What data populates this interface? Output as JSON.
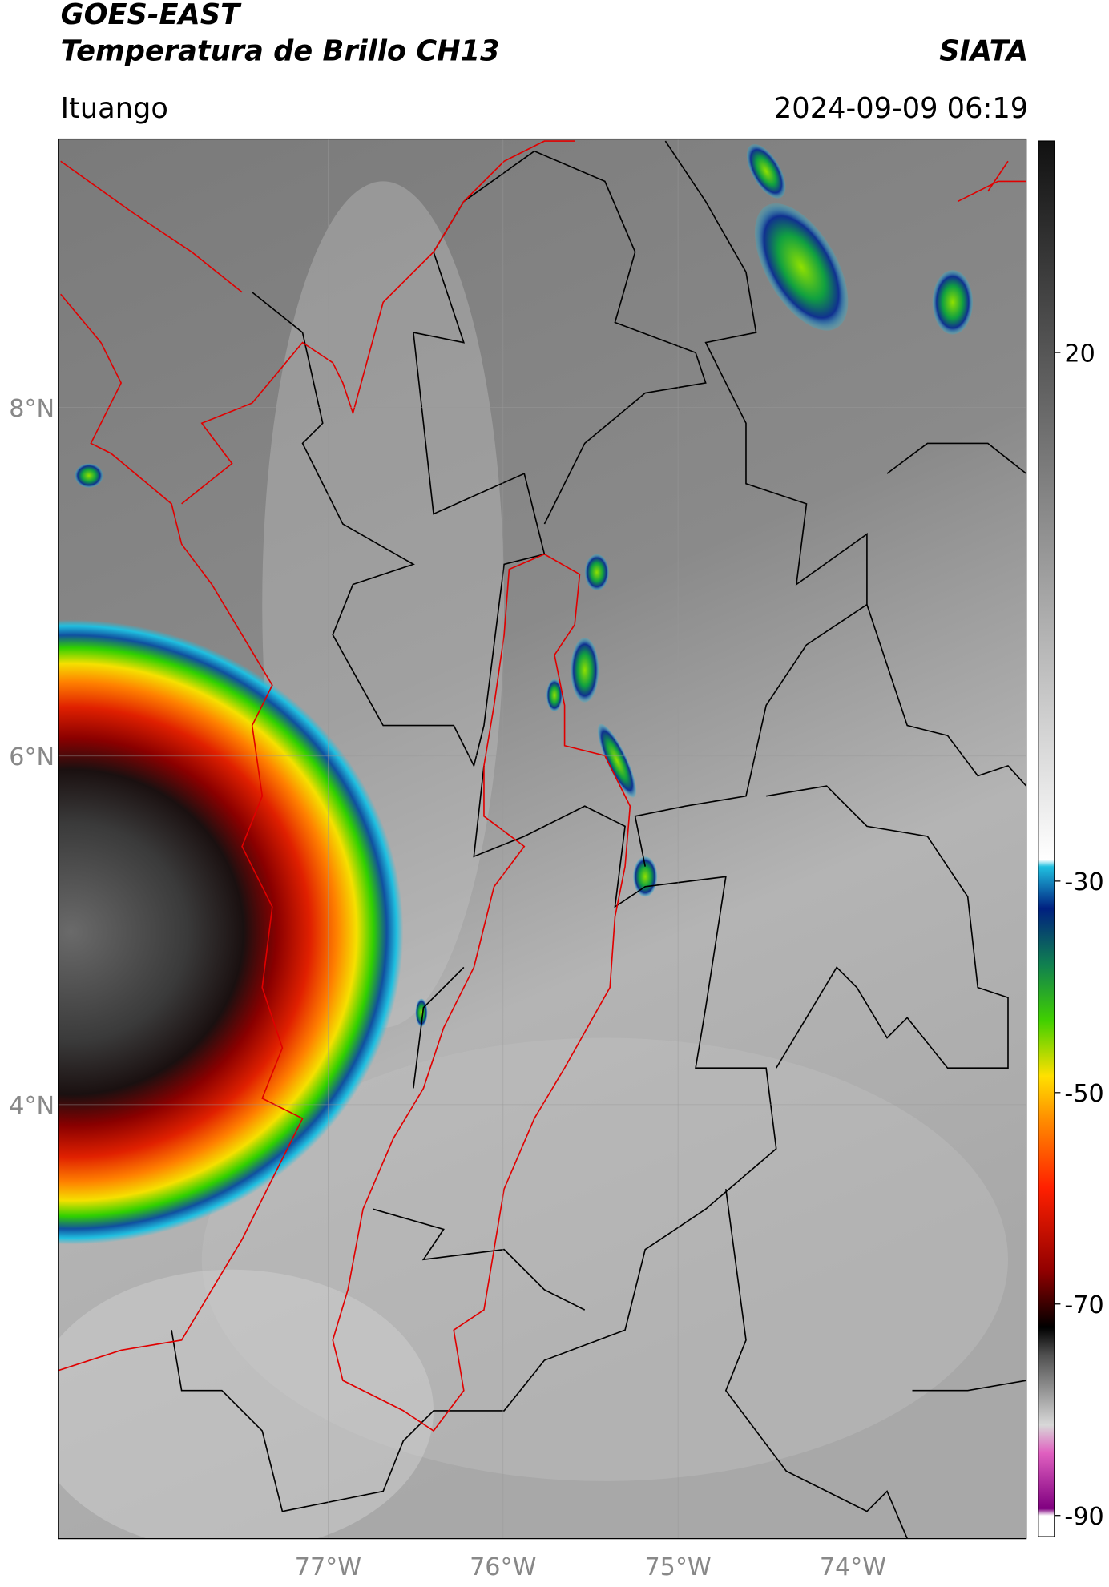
{
  "header": {
    "title": "GOES-EAST",
    "subtitle": "Temperatura de Brillo CH13",
    "brand": "SIATA",
    "location": "Ituango",
    "datetime": "2024-09-09 06:19"
  },
  "map": {
    "latlim": [
      1.51,
      9.54
    ],
    "lonlim": [
      -78.54,
      -73.01
    ],
    "latticks": [
      {
        "value": 8,
        "label": "8°N"
      },
      {
        "value": 6,
        "label": "6°N"
      },
      {
        "value": 4,
        "label": "4°N"
      }
    ],
    "lonticks": [
      {
        "value": -77,
        "label": "77°W"
      },
      {
        "value": -76,
        "label": "76°W"
      },
      {
        "value": -75,
        "label": "75°W"
      },
      {
        "value": -74,
        "label": "74°W"
      }
    ],
    "grid": true
  },
  "colorbar": {
    "lim": [
      -92,
      40
    ],
    "ticks": [
      20,
      -30,
      -50,
      -70,
      -90
    ]
  }
}
